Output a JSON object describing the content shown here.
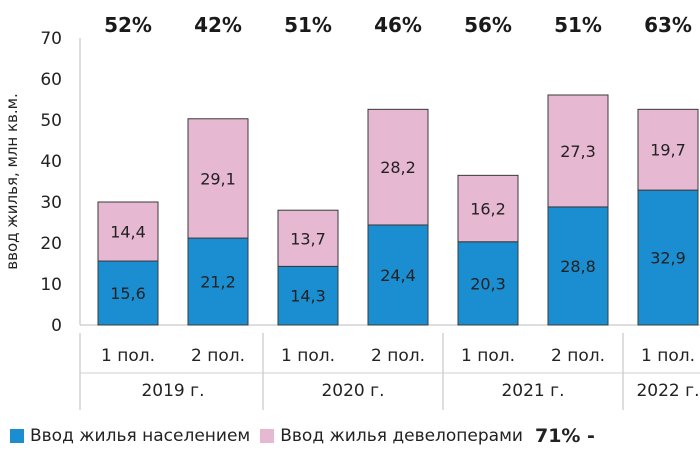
{
  "chart_data": {
    "type": "bar",
    "stacked": true,
    "title": "",
    "xlabel": "",
    "ylabel": "ввод жилья, млн кв.м.",
    "ylim": [
      0,
      70
    ],
    "yticks": [
      0,
      10,
      20,
      30,
      40,
      50,
      60,
      70
    ],
    "grid": false,
    "categories": [
      "1 пол.",
      "2 пол.",
      "1 пол.",
      "2 пол.",
      "1 пол.",
      "2 пол.",
      "1 пол."
    ],
    "groups": [
      {
        "label": "2019 г.",
        "count": 2
      },
      {
        "label": "2020 г.",
        "count": 2
      },
      {
        "label": "2021 г.",
        "count": 2
      },
      {
        "label": "2022 г.",
        "count": 1
      }
    ],
    "series": [
      {
        "name": "Ввод жилья населением",
        "color": "#1a8ed1",
        "values": [
          15.6,
          21.2,
          14.3,
          24.4,
          20.3,
          28.8,
          32.9
        ],
        "labels": [
          "15,6",
          "21,2",
          "14,3",
          "24,4",
          "20,3",
          "28,8",
          "32,9"
        ]
      },
      {
        "name": "Ввод жилья девелоперами",
        "color": "#e6b8d2",
        "values": [
          14.4,
          29.1,
          13.7,
          28.2,
          16.2,
          27.3,
          19.7
        ],
        "labels": [
          "14,4",
          "29,1",
          "13,7",
          "28,2",
          "16,2",
          "27,3",
          "19,7"
        ]
      }
    ],
    "top_annotations": [
      "52%",
      "42%",
      "51%",
      "46%",
      "56%",
      "51%",
      "63%"
    ],
    "legend_note": "71% -",
    "legend_position": "bottom"
  }
}
